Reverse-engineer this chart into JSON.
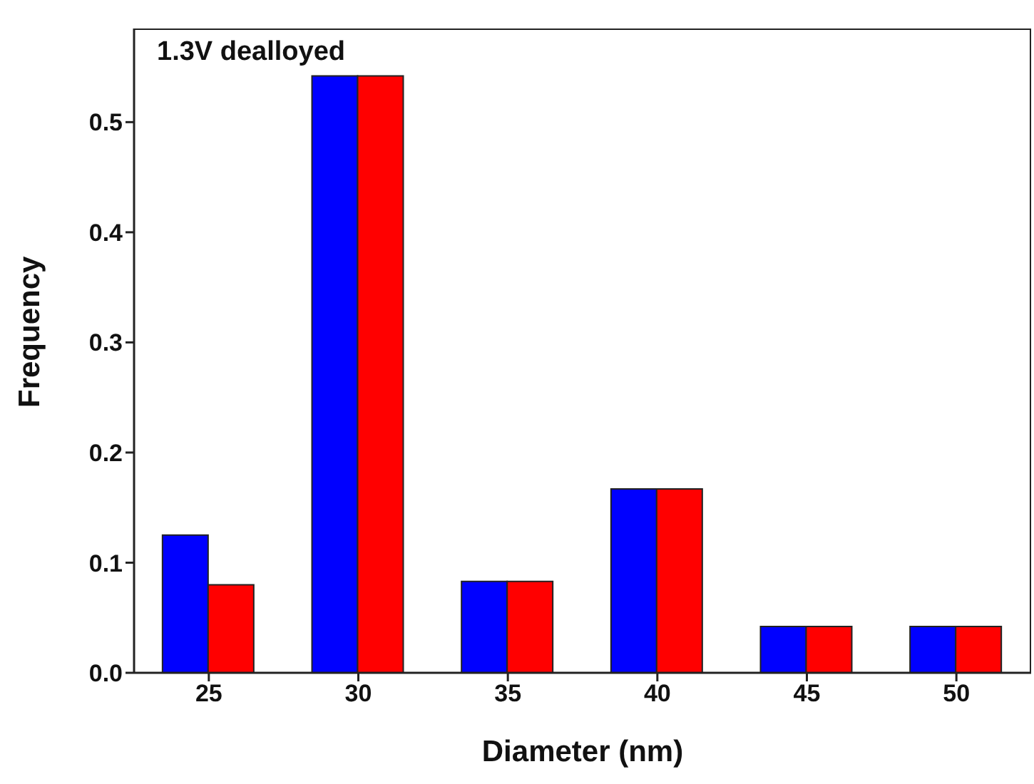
{
  "chart_data": {
    "type": "bar",
    "xlabel": "Diameter (nm)",
    "ylabel": "Frequency",
    "annotations": [
      "1.3V dealloyed"
    ],
    "categories": [
      "25",
      "30",
      "35",
      "40",
      "45",
      "50"
    ],
    "series": [
      {
        "color": "#0000ff",
        "values": [
          0.125,
          0.542,
          0.083,
          0.167,
          0.042,
          0.042
        ]
      },
      {
        "color": "#ff0000",
        "values": [
          0.08,
          0.542,
          0.083,
          0.167,
          0.042,
          0.042
        ]
      }
    ],
    "ylim": [
      0,
      0.585
    ],
    "yticks": [
      {
        "value": 0,
        "label": "0.0"
      },
      {
        "value": 0.1,
        "label": "0.1"
      },
      {
        "value": 0.2,
        "label": "0.2"
      },
      {
        "value": 0.3,
        "label": "0.3"
      },
      {
        "value": 0.4,
        "label": "0.4"
      },
      {
        "value": 0.5,
        "label": "0.5"
      }
    ],
    "grid": false,
    "legend": false
  }
}
